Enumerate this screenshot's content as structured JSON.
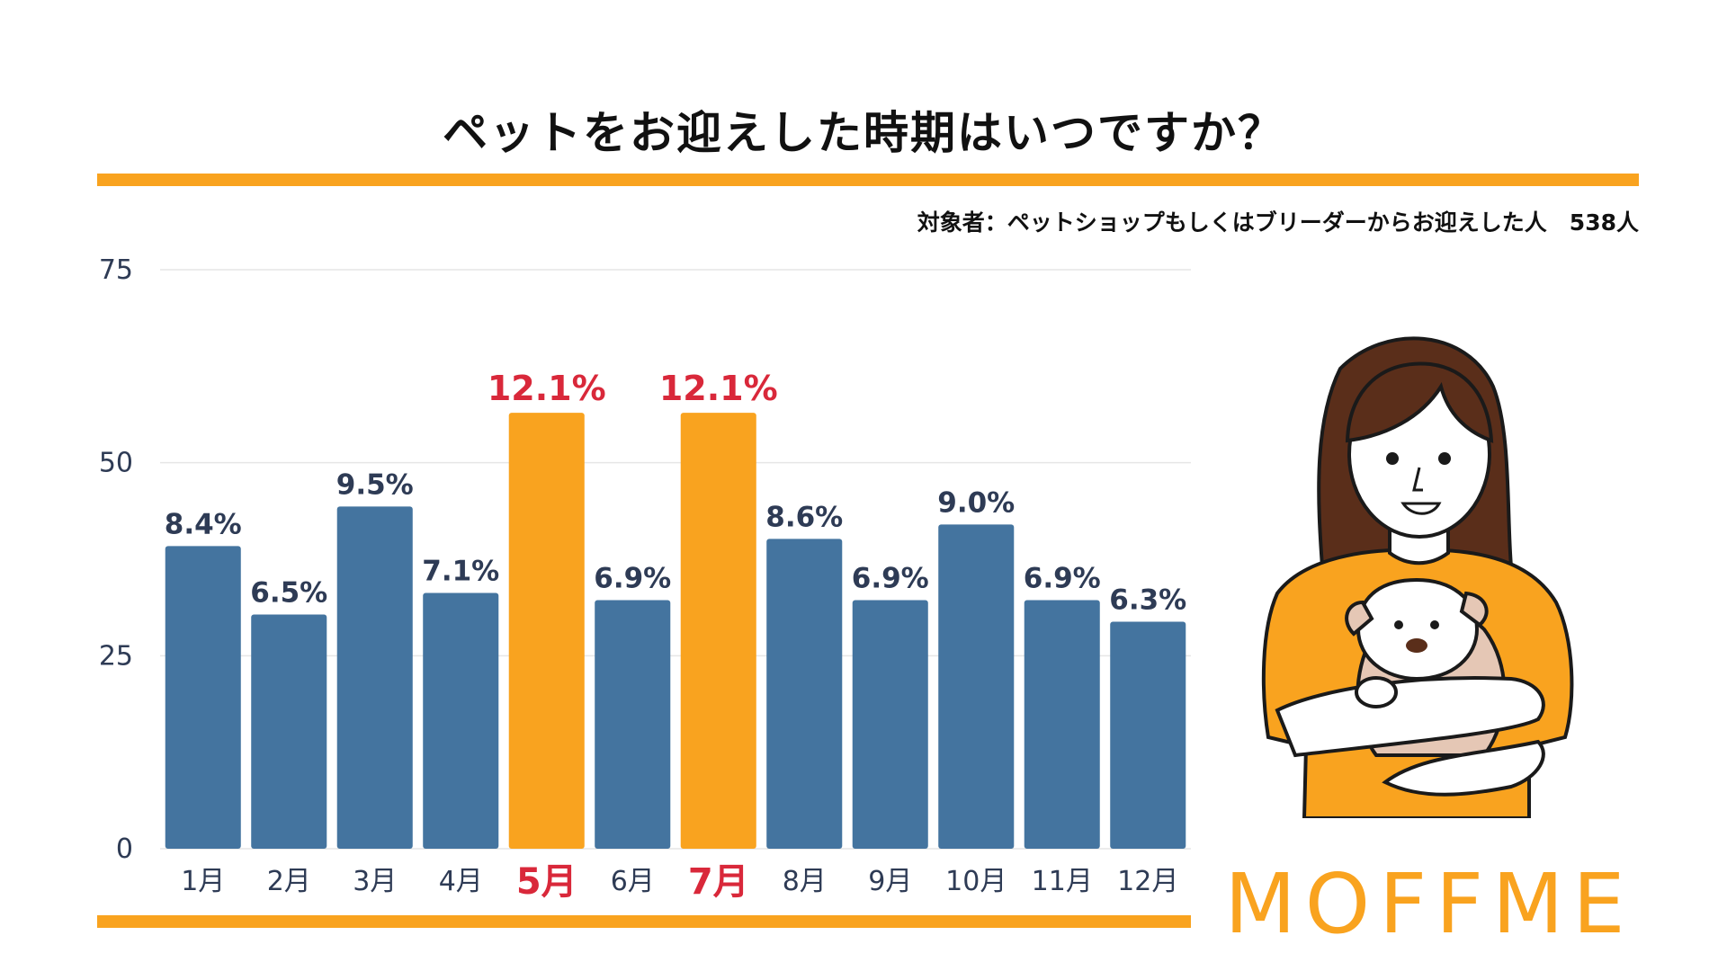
{
  "title": "ペットをお迎えした時期はいつですか？",
  "subtitle": "対象者：ペットショップもしくはブリーダーからお迎えした人　538人",
  "brand": "MOFFME",
  "colors": {
    "accent": "#F9A31F",
    "bar": "#44749F",
    "highlight_text": "#D9283A",
    "axis_text": "#2E3B55"
  },
  "illustration": "woman-holding-dog-illustration",
  "chart_data": {
    "type": "bar",
    "categories": [
      "1月",
      "2月",
      "3月",
      "4月",
      "5月",
      "6月",
      "7月",
      "8月",
      "9月",
      "10月",
      "11月",
      "12月"
    ],
    "values": [
      8.4,
      6.5,
      9.5,
      7.1,
      12.1,
      6.9,
      12.1,
      8.6,
      6.9,
      9.0,
      6.9,
      6.3
    ],
    "data_labels": [
      "8.4%",
      "6.5%",
      "9.5%",
      "7.1%",
      "12.1%",
      "6.9%",
      "12.1%",
      "8.6%",
      "6.9%",
      "9.0%",
      "6.9%",
      "6.3%"
    ],
    "highlighted": [
      "5月",
      "7月"
    ],
    "yticks": [
      0,
      25,
      50,
      75
    ],
    "ylim": [
      0,
      14
    ],
    "grid": true
  }
}
